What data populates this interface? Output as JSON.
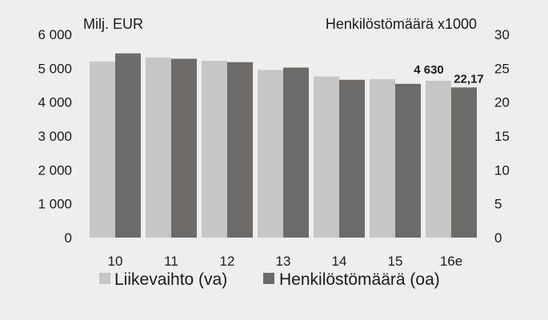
{
  "chart_data": {
    "type": "bar",
    "left_axis_unit": "Milj. EUR",
    "right_axis_unit": "Henkilöstömäärä x1000",
    "categories": [
      "10",
      "11",
      "12",
      "13",
      "14",
      "15",
      "16e"
    ],
    "series": [
      {
        "name": "Liikevaihto (va)",
        "axis": "left",
        "color": "#c6c6c6",
        "values": [
          5200,
          5320,
          5220,
          4950,
          4760,
          4680,
          4630
        ]
      },
      {
        "name": "Henkilöstömäärä (oa)",
        "axis": "right",
        "color": "#6e6a68",
        "values": [
          27.2,
          26.4,
          25.9,
          25.1,
          23.3,
          22.7,
          22.17
        ]
      }
    ],
    "left_ylim": [
      0,
      6000
    ],
    "left_ticks": [
      "0",
      "1 000",
      "2 000",
      "3 000",
      "4 000",
      "5 000",
      "6 000"
    ],
    "right_ylim": [
      0,
      30
    ],
    "right_ticks": [
      "0",
      "5",
      "10",
      "15",
      "20",
      "25",
      "30"
    ],
    "data_labels": [
      {
        "series": 0,
        "category": "16e",
        "text": "4 630"
      },
      {
        "series": 1,
        "category": "16e",
        "text": "22,17"
      }
    ],
    "grid": false,
    "legend_position": "bottom"
  }
}
